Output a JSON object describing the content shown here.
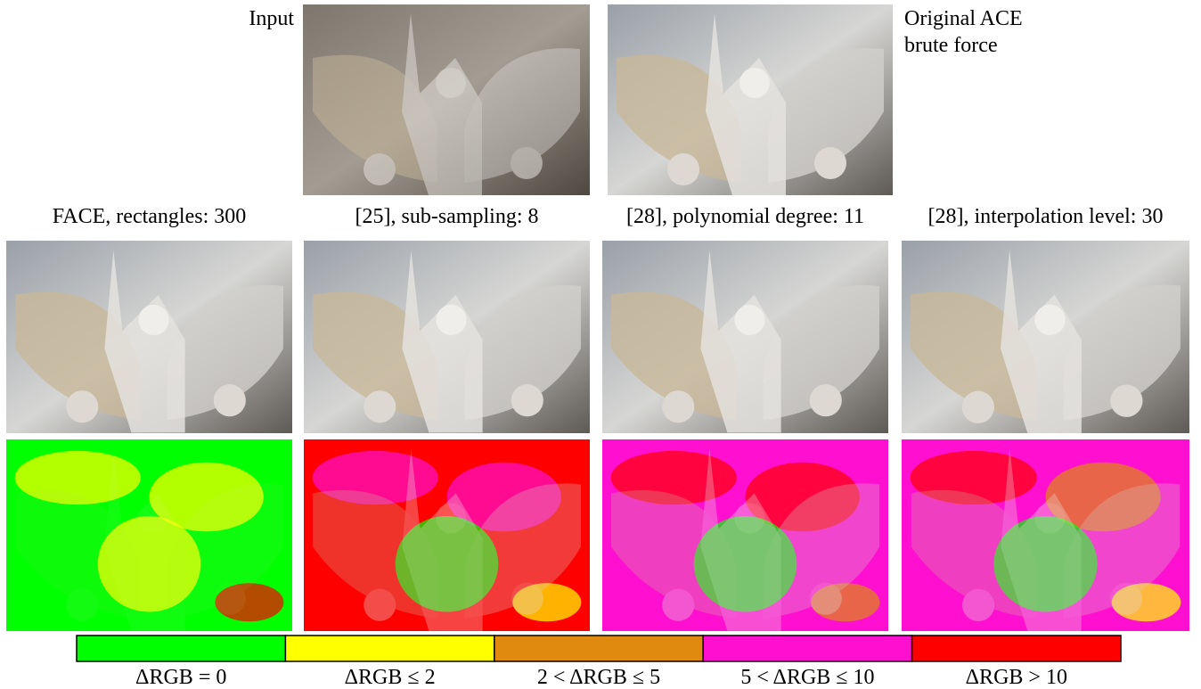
{
  "top": {
    "input_label": "Input",
    "reference_label": [
      "Original ACE",
      "brute force"
    ]
  },
  "methods": [
    "FACE, rectangles: 300",
    "[25], sub-sampling: 8",
    "[28], polynomial degree: 11",
    "[28], interpolation level: 30"
  ],
  "legend": [
    {
      "label": "ΔRGB = 0",
      "color": "#00ff00"
    },
    {
      "label": "ΔRGB ≤ 2",
      "color": "#ffff00"
    },
    {
      "label": "2 < ΔRGB ≤ 5",
      "color": "#e08a10"
    },
    {
      "label": "5 < ΔRGB ≤ 10",
      "color": "#ff10d0"
    },
    {
      "label": "ΔRGB > 10",
      "color": "#ff0000"
    }
  ]
}
